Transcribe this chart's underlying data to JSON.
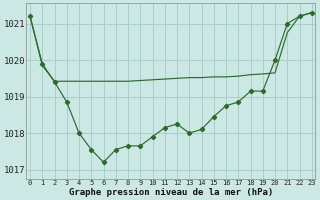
{
  "xlabel": "Graphe pression niveau de la mer (hPa)",
  "background_color": "#cce8e4",
  "grid_color": "#aaceca",
  "line_color": "#2d6a2d",
  "marker_color": "#2d6a2d",
  "x_values": [
    0,
    1,
    2,
    3,
    4,
    5,
    6,
    7,
    8,
    9,
    10,
    11,
    12,
    13,
    14,
    15,
    16,
    17,
    18,
    19,
    20,
    21,
    22,
    23
  ],
  "y_main": [
    1021.2,
    1019.9,
    1019.4,
    1018.85,
    1018.0,
    1017.55,
    1017.2,
    1017.55,
    1017.65,
    1017.65,
    1017.9,
    1018.15,
    1018.25,
    1018.0,
    1018.1,
    1018.45,
    1018.75,
    1018.85,
    1019.15,
    1019.15,
    1020.0,
    1021.0,
    1021.2,
    1021.3
  ],
  "y_smooth": [
    1021.2,
    1019.85,
    1019.42,
    1019.42,
    1019.42,
    1019.42,
    1019.42,
    1019.42,
    1019.42,
    1019.44,
    1019.46,
    1019.48,
    1019.5,
    1019.52,
    1019.52,
    1019.54,
    1019.54,
    1019.56,
    1019.6,
    1019.62,
    1019.65,
    1020.75,
    1021.2,
    1021.3
  ],
  "ylim": [
    1016.75,
    1021.55
  ],
  "yticks": [
    1017,
    1018,
    1019,
    1020,
    1021
  ],
  "xlim": [
    -0.3,
    23.3
  ],
  "figsize": [
    3.2,
    2.0
  ],
  "dpi": 100
}
